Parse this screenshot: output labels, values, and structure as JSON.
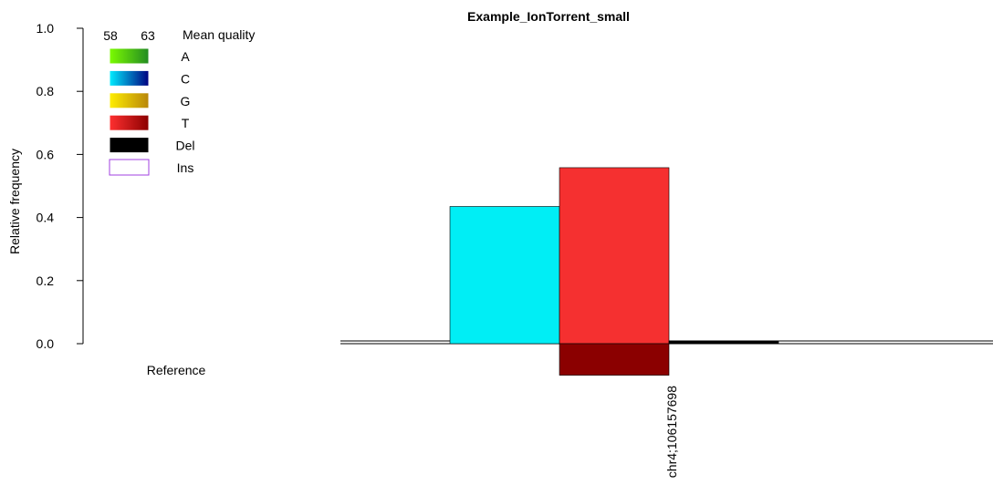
{
  "chart_data": {
    "type": "bar",
    "title": "Example_IonTorrent_small",
    "ylabel": "Relative frequency",
    "ylim": [
      0,
      1.0
    ],
    "yticks": [
      "0.0",
      "0.2",
      "0.4",
      "0.6",
      "0.8",
      "1.0"
    ],
    "reference_label": "Reference",
    "categories": [
      "chr4;106157698"
    ],
    "bars": [
      {
        "base": "C",
        "value": 0.435,
        "color": "#00eef5"
      },
      {
        "base": "T",
        "value": 0.558,
        "color": "#f53030",
        "reference_value": 0.1,
        "reference_color": "#8b0000"
      },
      {
        "base": "Del",
        "value": 0.008,
        "color": "#000000"
      }
    ],
    "legend": {
      "quality_title": "Mean quality",
      "quality_min": "58",
      "quality_max": "63",
      "entries": [
        {
          "label": "A",
          "color_from": "#7cfc00",
          "color_to": "#228b22"
        },
        {
          "label": "C",
          "color_from": "#00eeff",
          "color_to": "#000080"
        },
        {
          "label": "G",
          "color_from": "#ffee00",
          "color_to": "#b8860b"
        },
        {
          "label": "T",
          "color_from": "#ff3030",
          "color_to": "#8b0000"
        },
        {
          "label": "Del",
          "color_from": "#000000",
          "color_to": "#000000"
        },
        {
          "label": "Ins",
          "outline": "#a040e0"
        }
      ]
    }
  }
}
